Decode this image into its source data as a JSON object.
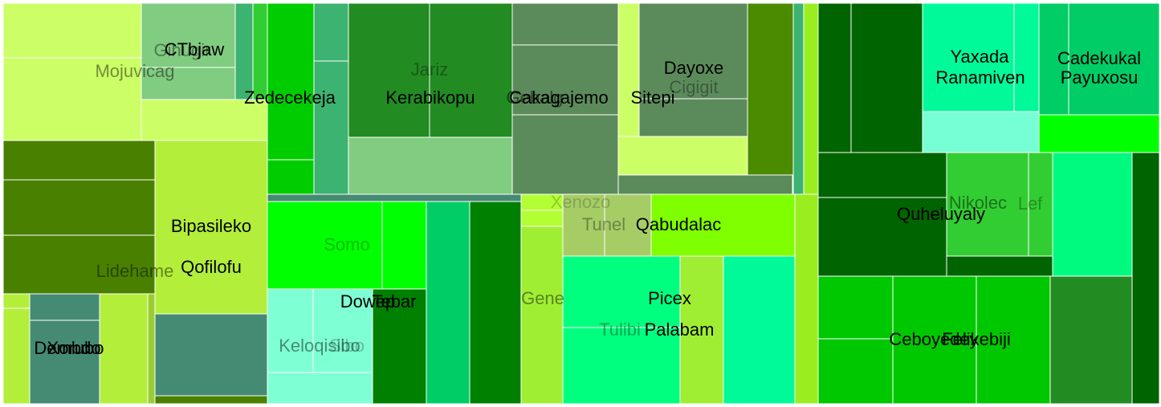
{
  "chart_data": {
    "type": "treemap",
    "labels": [
      "Mojuvicag",
      "Gihugir",
      "CTbjaw",
      "Zedecekeja",
      "Jariz",
      "Kerabikopu",
      "Gebalg",
      "Cakagajemo",
      "Sitepi",
      "Dayoxe",
      "Cigigit",
      "Bipasileko",
      "Lidehame",
      "Qofilofu",
      "Dembdo",
      "Xorubo",
      "Somo",
      "Dowep",
      "Tebar",
      "Keloqisibo",
      "Sibo",
      "Xenozo",
      "Tunel",
      "Qabudalac",
      "Gene",
      "Picex",
      "Tulibi",
      "Palabam",
      "Yaxada",
      "Ranamiven",
      "Cadekukal",
      "Payuxosu",
      "Quheluyaly",
      "Nikolec",
      "Lef",
      "Ceboyedey",
      "Felikebiji"
    ]
  }
}
